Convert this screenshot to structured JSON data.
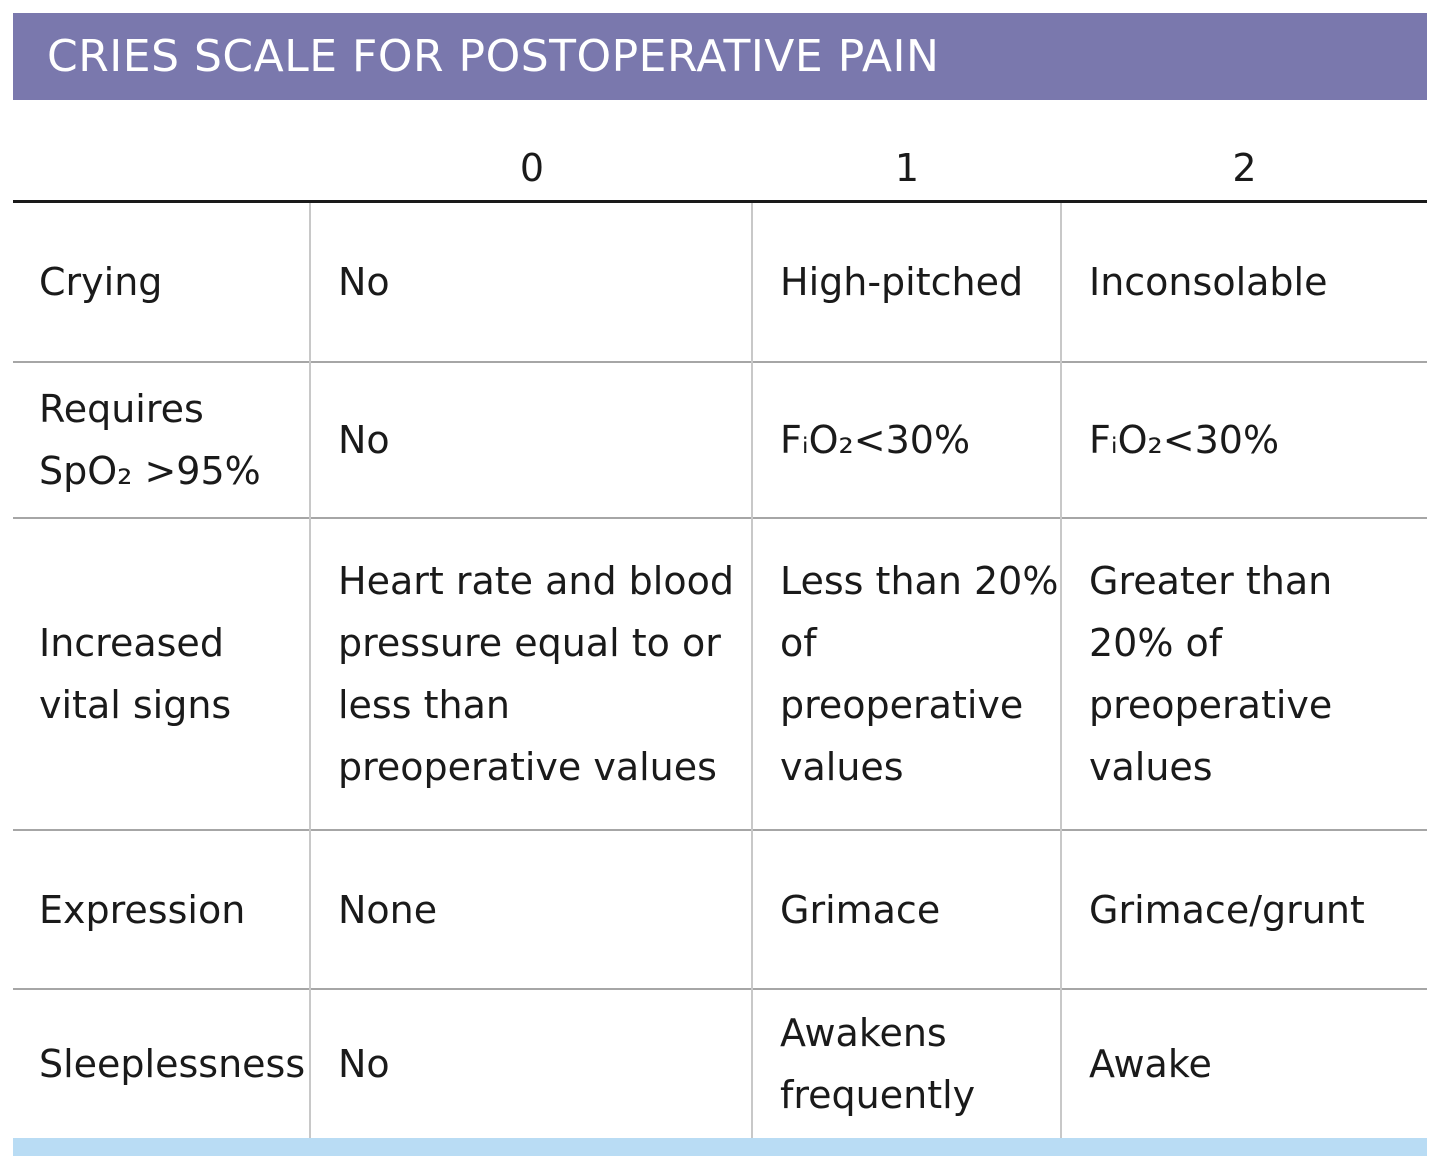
{
  "title": "CRIES SCALE FOR POSTOPERATIVE PAIN",
  "columns": [
    "",
    "0",
    "1",
    "2"
  ],
  "rows": [
    {
      "label": "Crying",
      "c0": "No",
      "c1": "High-pitched",
      "c2": "Inconsolable"
    },
    {
      "label": "Requires\nSpO₂ >95%",
      "c0": "No",
      "c1": "FᵢO₂<30%",
      "c2": "FᵢO₂<30%"
    },
    {
      "label": "Increased\nvital signs",
      "c0": "Heart rate and blood\npressure equal to or\nless than\npreoperative values",
      "c1": "Less than 20%\nof\npreoperative\nvalues",
      "c2": "Greater than\n20% of\npreoperative\nvalues"
    },
    {
      "label": "Expression",
      "c0": "None",
      "c1": "Grimace",
      "c2": "Grimace/grunt"
    },
    {
      "label": "Sleeplessness",
      "c0": "No",
      "c1": "Awakens\nfrequently",
      "c2": "Awake"
    }
  ],
  "colors": {
    "banner": "#7a78ad",
    "bottom_bar": "#b9dcf4",
    "rule": "#a6a6a6"
  }
}
